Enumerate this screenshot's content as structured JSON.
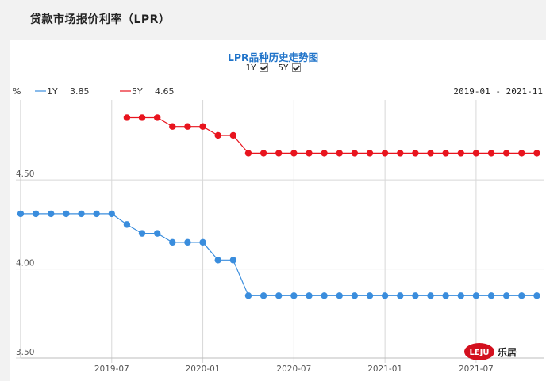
{
  "page": {
    "title": "贷款市场报价利率（LPR）"
  },
  "toggles": [
    {
      "label": "1Y",
      "checked": true
    },
    {
      "label": "5Y",
      "checked": true
    }
  ],
  "logo": {
    "badge": "LEJU",
    "text": "乐居"
  },
  "chart_data": {
    "type": "line",
    "title": "LPR品种历史走势图",
    "ylabel": "%",
    "date_range": "2019-01 - 2021-11",
    "ylim": [
      3.5,
      4.95
    ],
    "yticks": [
      3.5,
      4.0,
      4.5
    ],
    "ytick_labels": [
      "3.50",
      "4.00",
      "4.50"
    ],
    "xlim_month_index": [
      0,
      34.5
    ],
    "xticks": [
      6,
      12,
      18,
      24,
      30
    ],
    "xtick_labels": [
      "2019-07",
      "2020-01",
      "2020-07",
      "2021-01",
      "2021-07"
    ],
    "series": [
      {
        "name": "1Y",
        "latest": "3.85",
        "color": "#3a8ddd",
        "x": [
          0,
          1,
          2,
          3,
          4,
          5,
          6,
          7,
          8,
          9,
          10,
          11,
          12,
          13,
          14,
          15,
          16,
          17,
          18,
          19,
          20,
          21,
          22,
          23,
          24,
          25,
          26,
          27,
          28,
          29,
          30,
          31,
          32,
          33,
          34
        ],
        "values": [
          4.31,
          4.31,
          4.31,
          4.31,
          4.31,
          4.31,
          4.31,
          4.25,
          4.2,
          4.2,
          4.15,
          4.15,
          4.15,
          4.05,
          4.05,
          3.85,
          3.85,
          3.85,
          3.85,
          3.85,
          3.85,
          3.85,
          3.85,
          3.85,
          3.85,
          3.85,
          3.85,
          3.85,
          3.85,
          3.85,
          3.85,
          3.85,
          3.85,
          3.85,
          3.85
        ]
      },
      {
        "name": "5Y",
        "latest": "4.65",
        "color": "#e8141e",
        "x": [
          7,
          8,
          9,
          10,
          11,
          12,
          13,
          14,
          15,
          16,
          17,
          18,
          19,
          20,
          21,
          22,
          23,
          24,
          25,
          26,
          27,
          28,
          29,
          30,
          31,
          32,
          33,
          34
        ],
        "values": [
          4.85,
          4.85,
          4.85,
          4.8,
          4.8,
          4.8,
          4.75,
          4.75,
          4.65,
          4.65,
          4.65,
          4.65,
          4.65,
          4.65,
          4.65,
          4.65,
          4.65,
          4.65,
          4.65,
          4.65,
          4.65,
          4.65,
          4.65,
          4.65,
          4.65,
          4.65,
          4.65,
          4.65
        ]
      }
    ]
  }
}
